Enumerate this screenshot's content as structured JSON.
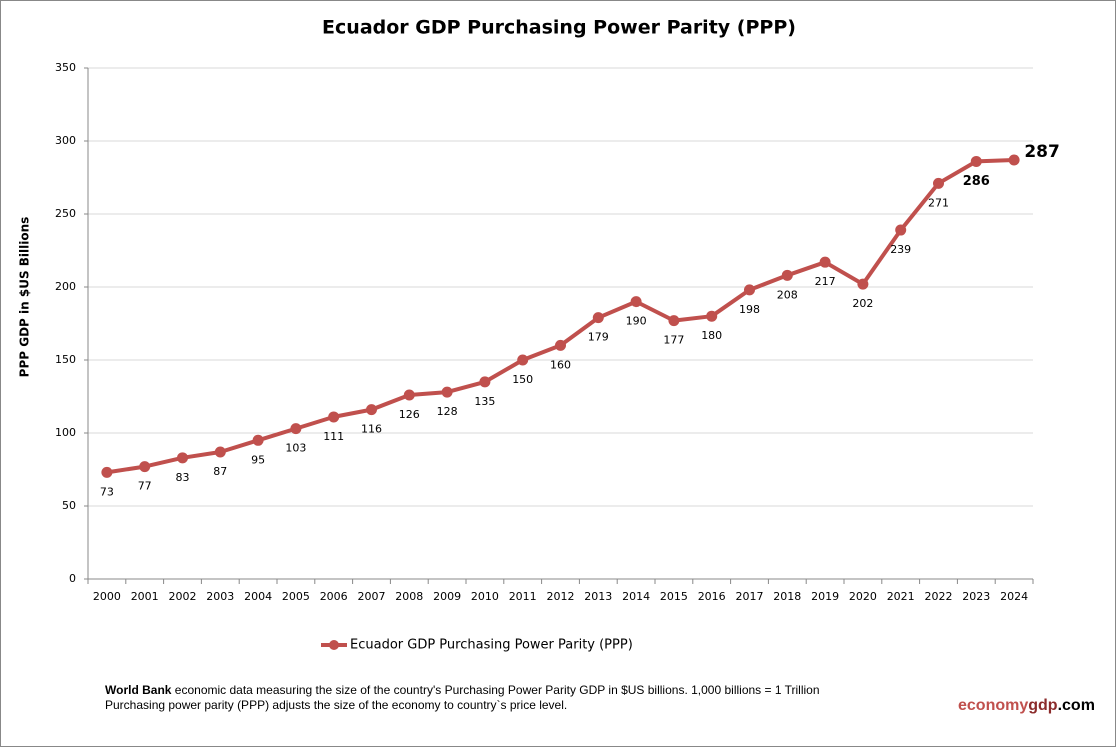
{
  "chart_data": {
    "type": "line",
    "title": "Ecuador GDP Purchasing Power Parity (PPP)",
    "y_label": "PPP GDP in $US Billions",
    "categories": [
      "2000",
      "2001",
      "2002",
      "2003",
      "2004",
      "2005",
      "2006",
      "2007",
      "2008",
      "2009",
      "2010",
      "2011",
      "2012",
      "2013",
      "2014",
      "2015",
      "2016",
      "2017",
      "2018",
      "2019",
      "2020",
      "2021",
      "2022",
      "2023",
      "2024"
    ],
    "series": [
      {
        "name": "Ecuador GDP Purchasing Power Parity (PPP)",
        "color": "#c0504d",
        "values": [
          73,
          77,
          83,
          87,
          95,
          103,
          111,
          116,
          126,
          128,
          135,
          150,
          160,
          179,
          190,
          177,
          180,
          198,
          208,
          217,
          202,
          239,
          271,
          286,
          287
        ]
      }
    ],
    "ylim": [
      0,
      350
    ],
    "yticks": [
      0,
      50,
      100,
      150,
      200,
      250,
      300,
      350
    ],
    "grid": true,
    "legend": "bottom"
  },
  "footer": {
    "source": "World Bank",
    "note_line1": "economic data  measuring the size of the country's Purchasing Power Parity GDP in $US billions. 1,000 billions = 1 Trillion",
    "note_line2": "Purchasing power parity (PPP) adjusts the size of the economy to country`s price level.",
    "brand_part1": "economy",
    "brand_part2": "gdp",
    "brand_part3": ".com"
  }
}
